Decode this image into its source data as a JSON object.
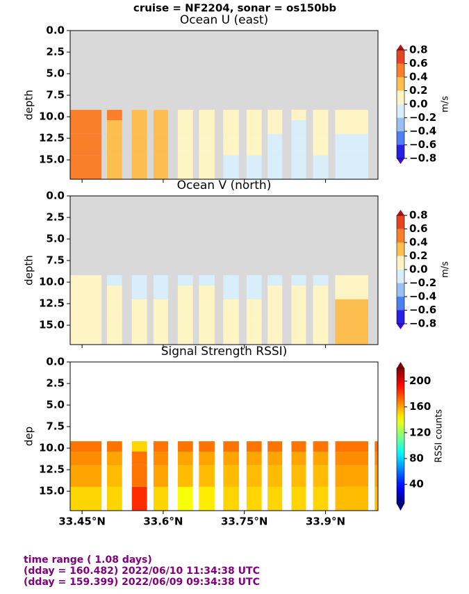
{
  "suptitle": "cruise = NF2204,  sonar = os150bb",
  "footer": [
    "time range ( 1.08 days)",
    "(dday = 160.482) 2022/06/10 11:34:38 UTC",
    "(dday = 159.399) 2022/06/09 09:34:38 UTC"
  ],
  "chart_data": [
    {
      "type": "heatmap",
      "title": "Ocean U (east)",
      "ylabel": "depth",
      "facecolor": "#d9d9d9",
      "xlim": [
        33.428,
        33.997
      ],
      "ylim": [
        17.25,
        0
      ],
      "xticks": [
        33.45,
        33.6,
        33.75,
        33.9
      ],
      "yticks": [
        {
          "value": 0,
          "label": "0.0"
        },
        {
          "value": 2.5,
          "label": "2.5"
        },
        {
          "value": 5,
          "label": "5.0"
        },
        {
          "value": 7.5,
          "label": "7.5"
        },
        {
          "value": 10,
          "label": "10.0"
        },
        {
          "value": 12.5,
          "label": "12.5"
        },
        {
          "value": 15,
          "label": "15.0"
        }
      ],
      "depth_edges": [
        9.2,
        10.4,
        12,
        14.5,
        17.25
      ],
      "x_edges": [
        [
          33.428,
          33.486
        ],
        [
          33.496,
          33.524
        ],
        [
          33.542,
          33.57
        ],
        [
          33.582,
          33.609
        ],
        [
          33.627,
          33.655
        ],
        [
          33.666,
          33.695
        ],
        [
          33.711,
          33.74
        ],
        [
          33.754,
          33.782
        ],
        [
          33.793,
          33.82
        ],
        [
          33.837,
          33.864
        ],
        [
          33.877,
          33.905
        ],
        [
          33.918,
          33.979
        ]
      ],
      "values": [
        [
          0.5,
          0.5,
          0.5,
          0.5
        ],
        [
          0.5,
          0.3,
          0.3,
          0.3
        ],
        [
          0.3,
          0.3,
          0.3,
          0.3
        ],
        [
          0.3,
          0.3,
          0.3,
          0.3
        ],
        [
          0.1,
          0.1,
          0.1,
          0.1
        ],
        [
          0.1,
          0.1,
          0.1,
          0.1
        ],
        [
          0.1,
          0.1,
          0.1,
          -0.1
        ],
        [
          0.1,
          0.1,
          0.1,
          -0.1
        ],
        [
          0.1,
          0.1,
          -0.1,
          -0.1
        ],
        [
          0.1,
          -0.1,
          -0.1,
          -0.1
        ],
        [
          0.1,
          0.1,
          0.1,
          -0.1
        ],
        [
          0.1,
          0.1,
          -0.1,
          -0.1
        ]
      ],
      "colorbar": {
        "label": "m/s",
        "ticks": [
          {
            "value": -0.8,
            "label": "−0.8"
          },
          {
            "value": -0.6,
            "label": "−0.6"
          },
          {
            "value": -0.4,
            "label": "−0.4"
          },
          {
            "value": -0.2,
            "label": "−0.2"
          },
          {
            "value": 0,
            "label": "0.0"
          },
          {
            "value": 0.2,
            "label": "0.2"
          },
          {
            "value": 0.4,
            "label": "0.4"
          },
          {
            "value": 0.6,
            "label": "0.6"
          },
          {
            "value": 0.8,
            "label": "0.8"
          }
        ],
        "colors": [
          "#2a1fe6",
          "#4d7ff2",
          "#98c0f4",
          "#d8eefb",
          "#fff5c4",
          "#fcbf4f",
          "#f97f2b",
          "#e4451e"
        ],
        "extend_colors": [
          "#3a0ad6",
          "#b30f18"
        ]
      }
    },
    {
      "type": "heatmap",
      "title": "Ocean V (north)",
      "ylabel": "depth",
      "facecolor": "#d9d9d9",
      "xlim": [
        33.428,
        33.997
      ],
      "ylim": [
        17.25,
        0
      ],
      "xticks": [
        33.45,
        33.6,
        33.75,
        33.9
      ],
      "yticks": [
        {
          "value": 0,
          "label": "0.0"
        },
        {
          "value": 2.5,
          "label": "2.5"
        },
        {
          "value": 5,
          "label": "5.0"
        },
        {
          "value": 7.5,
          "label": "7.5"
        },
        {
          "value": 10,
          "label": "10.0"
        },
        {
          "value": 12.5,
          "label": "12.5"
        },
        {
          "value": 15,
          "label": "15.0"
        }
      ],
      "depth_edges": [
        9.2,
        10.4,
        12,
        14.5,
        17.25
      ],
      "x_edges": [
        [
          33.428,
          33.486
        ],
        [
          33.496,
          33.524
        ],
        [
          33.542,
          33.57
        ],
        [
          33.582,
          33.609
        ],
        [
          33.627,
          33.655
        ],
        [
          33.666,
          33.695
        ],
        [
          33.711,
          33.74
        ],
        [
          33.754,
          33.782
        ],
        [
          33.793,
          33.82
        ],
        [
          33.837,
          33.864
        ],
        [
          33.877,
          33.905
        ],
        [
          33.918,
          33.979
        ]
      ],
      "values": [
        [
          0.1,
          0.1,
          0.1,
          0.1
        ],
        [
          -0.1,
          0.1,
          0.1,
          0.1
        ],
        [
          -0.1,
          -0.1,
          0.1,
          0.1
        ],
        [
          -0.1,
          -0.1,
          0.1,
          0.1
        ],
        [
          -0.1,
          0.1,
          0.1,
          0.1
        ],
        [
          -0.1,
          0.1,
          0.1,
          0.1
        ],
        [
          -0.1,
          -0.1,
          0.1,
          0.1
        ],
        [
          -0.1,
          -0.1,
          0.1,
          0.1
        ],
        [
          -0.1,
          0.1,
          0.1,
          0.1
        ],
        [
          -0.1,
          0.1,
          0.1,
          0.1
        ],
        [
          -0.1,
          0.1,
          0.1,
          0.1
        ],
        [
          0.1,
          0.1,
          0.3,
          0.3
        ]
      ],
      "colorbar": {
        "label": "m/s",
        "ticks": [
          {
            "value": -0.8,
            "label": "−0.8"
          },
          {
            "value": -0.6,
            "label": "−0.6"
          },
          {
            "value": -0.4,
            "label": "−0.4"
          },
          {
            "value": -0.2,
            "label": "−0.2"
          },
          {
            "value": 0,
            "label": "0.0"
          },
          {
            "value": 0.2,
            "label": "0.2"
          },
          {
            "value": 0.4,
            "label": "0.4"
          },
          {
            "value": 0.6,
            "label": "0.6"
          },
          {
            "value": 0.8,
            "label": "0.8"
          }
        ],
        "colors": [
          "#2a1fe6",
          "#4d7ff2",
          "#98c0f4",
          "#d8eefb",
          "#fff5c4",
          "#fcbf4f",
          "#f97f2b",
          "#e4451e"
        ],
        "extend_colors": [
          "#3a0ad6",
          "#b30f18"
        ]
      }
    },
    {
      "type": "heatmap",
      "title": "Signal Strength RSSI)",
      "ylabel": "dep",
      "facecolor": "#ffffff",
      "xlim": [
        33.428,
        33.997
      ],
      "ylim": [
        17.25,
        0
      ],
      "xticks": [
        {
          "value": 33.45,
          "label": "33.45°N"
        },
        {
          "value": 33.6,
          "label": "33.6°N"
        },
        {
          "value": 33.75,
          "label": "33.75°N"
        },
        {
          "value": 33.9,
          "label": "33.9°N"
        }
      ],
      "yticks": [
        {
          "value": 0,
          "label": "0.0"
        },
        {
          "value": 2.5,
          "label": "2.5"
        },
        {
          "value": 5,
          "label": "5.0"
        },
        {
          "value": 7.5,
          "label": "7.5"
        },
        {
          "value": 10,
          "label": "10.0"
        },
        {
          "value": 12.5,
          "label": "12.5"
        },
        {
          "value": 15,
          "label": "15.0"
        }
      ],
      "depth_edges": [
        9.2,
        10.4,
        12,
        14.5,
        17.25
      ],
      "x_edges": [
        [
          33.428,
          33.486
        ],
        [
          33.496,
          33.524
        ],
        [
          33.542,
          33.57
        ],
        [
          33.582,
          33.609
        ],
        [
          33.627,
          33.655
        ],
        [
          33.666,
          33.695
        ],
        [
          33.711,
          33.74
        ],
        [
          33.754,
          33.782
        ],
        [
          33.793,
          33.82
        ],
        [
          33.837,
          33.864
        ],
        [
          33.877,
          33.905
        ],
        [
          33.918,
          33.979
        ],
        [
          33.991,
          33.997
        ]
      ],
      "values": [
        [
          170,
          165,
          160,
          150
        ],
        [
          170,
          160,
          155,
          150
        ],
        [
          150,
          170,
          170,
          185
        ],
        [
          170,
          165,
          160,
          150
        ],
        [
          170,
          160,
          155,
          140
        ],
        [
          170,
          160,
          155,
          145
        ],
        [
          170,
          160,
          155,
          150
        ],
        [
          170,
          160,
          155,
          150
        ],
        [
          170,
          160,
          155,
          150
        ],
        [
          170,
          160,
          155,
          150
        ],
        [
          170,
          160,
          155,
          150
        ],
        [
          170,
          165,
          160,
          155
        ],
        [
          170,
          165,
          160,
          155
        ]
      ],
      "colorbar": {
        "label": "RSSI counts",
        "colormap": "jet",
        "clim": [
          10,
          220
        ],
        "ticks": [
          40,
          80,
          120,
          160,
          200
        ]
      }
    }
  ]
}
